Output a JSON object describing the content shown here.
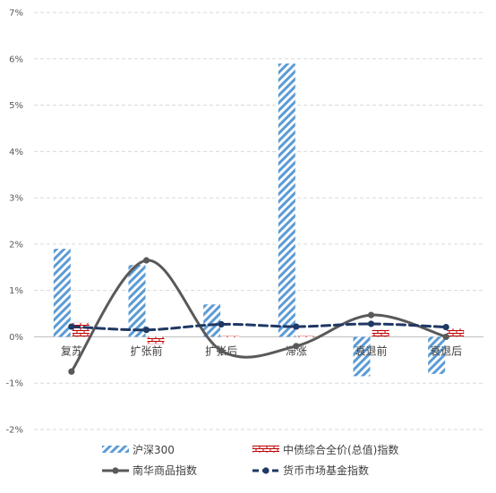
{
  "chart_data": {
    "type": "bar",
    "categories": [
      "复苏",
      "扩张前",
      "扩张后",
      "滞涨",
      "衰退前",
      "衰退后"
    ],
    "ylim": [
      -2,
      7
    ],
    "yticks": [
      "-2%",
      "-1%",
      "0%",
      "1%",
      "2%",
      "3%",
      "4%",
      "5%",
      "6%",
      "7%"
    ],
    "grid": true,
    "legend_position": "bottom",
    "series": [
      {
        "name": "沪深300",
        "kind": "bar",
        "pattern": "diagonal-hatch",
        "color": "#5b9bd5",
        "values": [
          1.9,
          1.55,
          0.7,
          5.9,
          -0.85,
          -0.8
        ]
      },
      {
        "name": "中债综合全价(总值)指数",
        "kind": "bar",
        "pattern": "brick",
        "color": "#c00000",
        "values": [
          0.3,
          -0.15,
          -0.02,
          0.0,
          0.15,
          0.18
        ]
      },
      {
        "name": "南华商品指数",
        "kind": "line",
        "style": "smooth-solid",
        "color": "#595959",
        "values": [
          -0.75,
          1.65,
          -0.3,
          -0.2,
          0.47,
          0.0
        ]
      },
      {
        "name": "货币市场基金指数",
        "kind": "line",
        "style": "dashed",
        "color": "#1f3864",
        "values": [
          0.22,
          0.15,
          0.27,
          0.22,
          0.28,
          0.21
        ]
      }
    ]
  }
}
